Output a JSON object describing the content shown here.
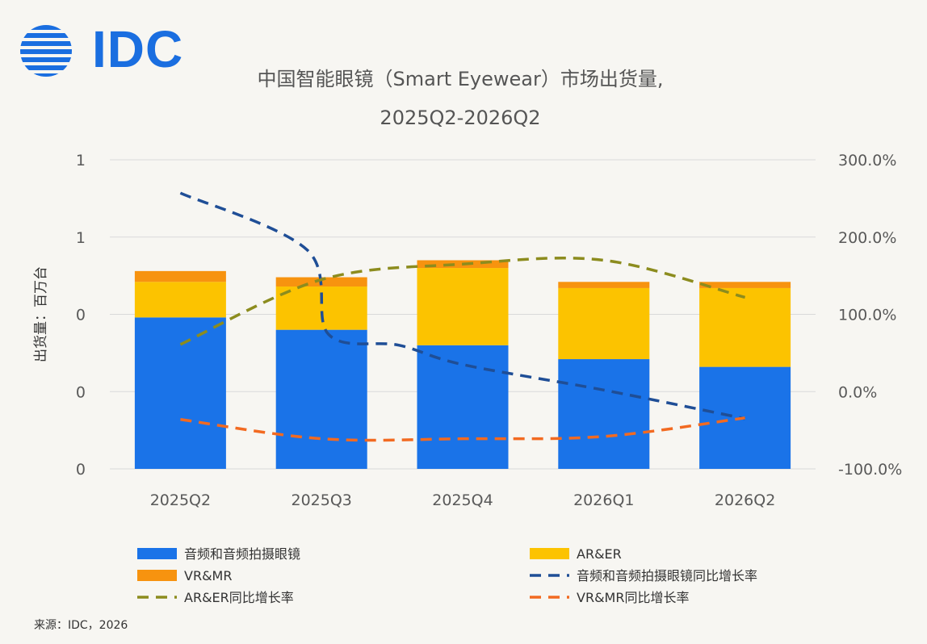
{
  "logo_text": "IDC",
  "title_line1": "中国智能眼镜（Smart Eyewear）市场出货量,",
  "title_line2": "2025Q2-2026Q2",
  "source": "来源：IDC，2026",
  "chart_data": {
    "type": "bar",
    "title": "中国智能眼镜（Smart Eyewear）市场出货量, 2025Q2-2026Q2",
    "ylabel": "出货量：百万台",
    "categories": [
      "2025Q2",
      "2025Q3",
      "2025Q4",
      "2026Q1",
      "2026Q2"
    ],
    "left_axis": {
      "ticks": [
        "0",
        "0",
        "0",
        "1",
        "1"
      ],
      "ylim": [
        0,
        2
      ]
    },
    "right_axis": {
      "ticks": [
        "-100.0%",
        "0.0%",
        "100.0%",
        "200.0%",
        "300.0%"
      ],
      "ylim": [
        -100,
        300
      ]
    },
    "stacked_series": [
      {
        "name": "音频和音频拍摄眼镜",
        "color": "#1a73e8",
        "values": [
          0.98,
          0.9,
          0.8,
          0.71,
          0.66
        ]
      },
      {
        "name": "AR&ER",
        "color": "#fcc300",
        "values": [
          0.23,
          0.28,
          0.5,
          0.46,
          0.51
        ]
      },
      {
        "name": "VR&MR",
        "color": "#f7930f",
        "values": [
          0.07,
          0.06,
          0.05,
          0.04,
          0.04
        ]
      }
    ],
    "line_series": [
      {
        "name": "音频和音频拍摄眼镜同比增长率",
        "color": "#1f4e96",
        "values": [
          257,
          183,
          74,
          60,
          35,
          2,
          -35
        ],
        "x": [
          0,
          0.9,
          1.05,
          1.55,
          2.0,
          3.0,
          4.0
        ]
      },
      {
        "name": "AR&ER同比增长率",
        "color": "#8c8c1e",
        "values": [
          61,
          145,
          165,
          170,
          122
        ]
      },
      {
        "name": "VR&MR同比增长率",
        "color": "#f26a21",
        "values": [
          -36,
          -61,
          -61,
          -58,
          -34
        ]
      }
    ],
    "legend_placement": "bottom",
    "grid": true
  }
}
